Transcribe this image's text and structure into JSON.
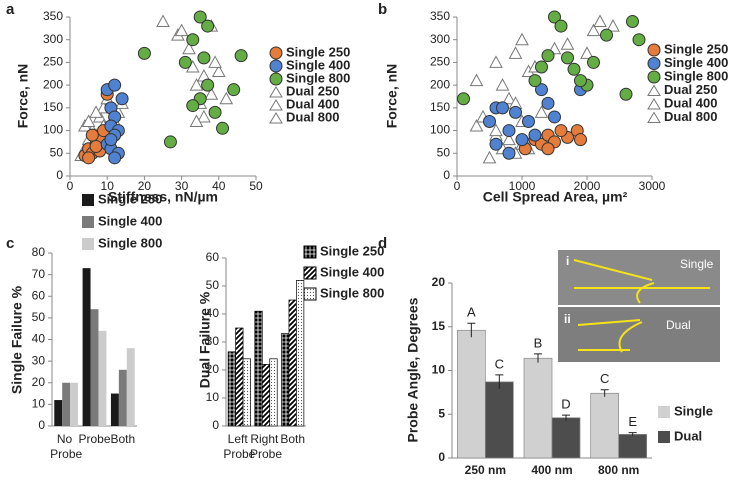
{
  "chart_data": [
    {
      "type": "scatter",
      "panel_label": "a",
      "x_label": "Stiffness, nN/µm",
      "y_label": "Force, nN",
      "xlim": [
        0,
        50
      ],
      "xticks": [
        0,
        10,
        20,
        30,
        40,
        50
      ],
      "ylim": [
        0,
        350
      ],
      "yticks": [
        0,
        50,
        100,
        150,
        200,
        250,
        300,
        350
      ],
      "series": [
        {
          "name": "Single 250",
          "color": "#e57c3c",
          "marker": "circle",
          "x": [
            4,
            5,
            6,
            7,
            8,
            6,
            9,
            10,
            5,
            8,
            7
          ],
          "values": [
            45,
            60,
            50,
            70,
            80,
            90,
            100,
            180,
            40,
            55,
            65
          ]
        },
        {
          "name": "Single 400",
          "color": "#4f82d0",
          "marker": "circle",
          "x": [
            10,
            12,
            11,
            12,
            11,
            13,
            12,
            10,
            11,
            13,
            12,
            14,
            11
          ],
          "values": [
            190,
            200,
            150,
            130,
            110,
            100,
            90,
            70,
            60,
            50,
            40,
            170,
            80
          ]
        },
        {
          "name": "Single 800",
          "color": "#64ad44",
          "marker": "circle",
          "x": [
            20,
            27,
            31,
            33,
            35,
            36,
            37,
            35,
            39,
            41,
            44,
            46,
            33,
            37
          ],
          "values": [
            270,
            75,
            250,
            300,
            350,
            260,
            200,
            170,
            140,
            105,
            190,
            265,
            155,
            330
          ]
        },
        {
          "name": "Dual 250",
          "color": "#ffffff",
          "marker": "triangle",
          "x": [
            3,
            4,
            5,
            6,
            4,
            7,
            5
          ],
          "values": [
            45,
            60,
            80,
            100,
            110,
            90,
            120
          ]
        },
        {
          "name": "Dual 400",
          "color": "#ffffff",
          "marker": "triangle",
          "x": [
            8,
            9,
            10,
            7,
            9,
            12,
            13,
            14
          ],
          "values": [
            130,
            150,
            170,
            140,
            110,
            120,
            140,
            160
          ]
        },
        {
          "name": "Dual 800",
          "color": "#ffffff",
          "marker": "triangle",
          "x": [
            25,
            29,
            30,
            32,
            34,
            35,
            33,
            36,
            38,
            40,
            42,
            36,
            34,
            38,
            39
          ],
          "values": [
            340,
            310,
            320,
            280,
            200,
            160,
            240,
            220,
            180,
            230,
            170,
            130,
            120,
            330,
            250
          ]
        }
      ]
    },
    {
      "type": "scatter",
      "panel_label": "b",
      "x_label": "Cell Spread Area, µm²",
      "y_label": "Force, nN",
      "xlim": [
        0,
        3000
      ],
      "xticks": [
        0,
        1000,
        2000,
        3000
      ],
      "ylim": [
        0,
        350
      ],
      "yticks": [
        0,
        50,
        100,
        150,
        200,
        250,
        300,
        350
      ],
      "series": [
        {
          "name": "Single 250",
          "color": "#e57c3c",
          "marker": "circle",
          "x": [
            1050,
            1200,
            1300,
            1400,
            1500,
            1700,
            1850,
            1900,
            1400,
            1600
          ],
          "values": [
            60,
            80,
            70,
            90,
            75,
            85,
            100,
            80,
            60,
            100
          ]
        },
        {
          "name": "Single 400",
          "color": "#4f82d0",
          "marker": "circle",
          "x": [
            500,
            600,
            700,
            800,
            900,
            1000,
            1100,
            1200,
            1300,
            1400,
            600,
            800,
            1500,
            1900
          ],
          "values": [
            120,
            150,
            150,
            100,
            140,
            80,
            120,
            90,
            190,
            160,
            70,
            50,
            130,
            190
          ]
        },
        {
          "name": "Single 800",
          "color": "#64ad44",
          "marker": "circle",
          "x": [
            100,
            1200,
            1300,
            1400,
            1500,
            1600,
            1700,
            1800,
            2000,
            2100,
            2300,
            2600,
            2700,
            2800,
            1900
          ],
          "values": [
            170,
            210,
            240,
            265,
            350,
            330,
            260,
            235,
            200,
            250,
            310,
            180,
            340,
            300,
            210
          ]
        },
        {
          "name": "Dual 250",
          "color": "#ffffff",
          "marker": "triangle",
          "x": [
            500,
            700,
            800,
            900,
            1000,
            600,
            1100
          ],
          "values": [
            40,
            60,
            80,
            50,
            70,
            90,
            60
          ]
        },
        {
          "name": "Dual 400",
          "color": "#ffffff",
          "marker": "triangle",
          "x": [
            300,
            400,
            600,
            800,
            900,
            1000,
            1300,
            700
          ],
          "values": [
            110,
            130,
            100,
            170,
            160,
            120,
            140,
            200
          ]
        },
        {
          "name": "Dual 800",
          "color": "#ffffff",
          "marker": "triangle",
          "x": [
            300,
            600,
            900,
            1000,
            1100,
            1200,
            1700,
            2000,
            2100,
            2200,
            2400,
            1500
          ],
          "values": [
            210,
            250,
            270,
            300,
            230,
            240,
            290,
            270,
            320,
            340,
            330,
            280
          ]
        }
      ]
    },
    {
      "type": "bar",
      "panel_label": "c",
      "y_label": "Single Failure %",
      "categories": [
        "No Probe",
        "Probe",
        "Both"
      ],
      "ylim": [
        0,
        80
      ],
      "yticks": [
        0,
        10,
        20,
        30,
        40,
        50,
        60,
        70,
        80
      ],
      "series": [
        {
          "name": "Single 250",
          "color": "#1a1a1a",
          "values": [
            12,
            73,
            15
          ]
        },
        {
          "name": "Single 400",
          "color": "#7a7a7a",
          "values": [
            20,
            54,
            26
          ]
        },
        {
          "name": "Single 800",
          "color": "#cccccc",
          "values": [
            20,
            44,
            36
          ]
        }
      ]
    },
    {
      "type": "bar",
      "y_label": "Dual Failure %",
      "categories": [
        "Left Probe",
        "Right Probe",
        "Both"
      ],
      "ylim": [
        0,
        60
      ],
      "yticks": [
        0,
        10,
        20,
        30,
        40,
        50,
        60
      ],
      "series": [
        {
          "name": "Single 250",
          "color": "#000000",
          "pattern": "grid",
          "values": [
            26.5,
            41,
            33
          ]
        },
        {
          "name": "Single 400",
          "color": "#000000",
          "pattern": "diag",
          "values": [
            35,
            22,
            45
          ]
        },
        {
          "name": "Single 800",
          "color": "#000000",
          "pattern": "dots",
          "values": [
            24,
            24,
            52
          ]
        }
      ]
    },
    {
      "type": "bar",
      "panel_label": "d",
      "y_label": "Probe Angle, Degrees",
      "categories": [
        "250 nm",
        "400 nm",
        "800 nm"
      ],
      "ylim": [
        0,
        20
      ],
      "yticks": [
        0,
        5,
        10,
        15,
        20
      ],
      "inset": {
        "top_label": "i",
        "top_text": "Single",
        "bottom_label": "ii",
        "bottom_text": "Dual"
      },
      "series": [
        {
          "name": "Single",
          "color": "#d0d0d0",
          "values": [
            14.6,
            11.4,
            7.4
          ],
          "errors": [
            0.8,
            0.5,
            0.4
          ],
          "letters": [
            "A",
            "B",
            "C"
          ]
        },
        {
          "name": "Dual",
          "color": "#4d4d4d",
          "values": [
            8.7,
            4.6,
            2.7
          ],
          "errors": [
            0.8,
            0.3,
            0.2
          ],
          "letters": [
            "C",
            "D",
            "E"
          ]
        }
      ]
    }
  ]
}
